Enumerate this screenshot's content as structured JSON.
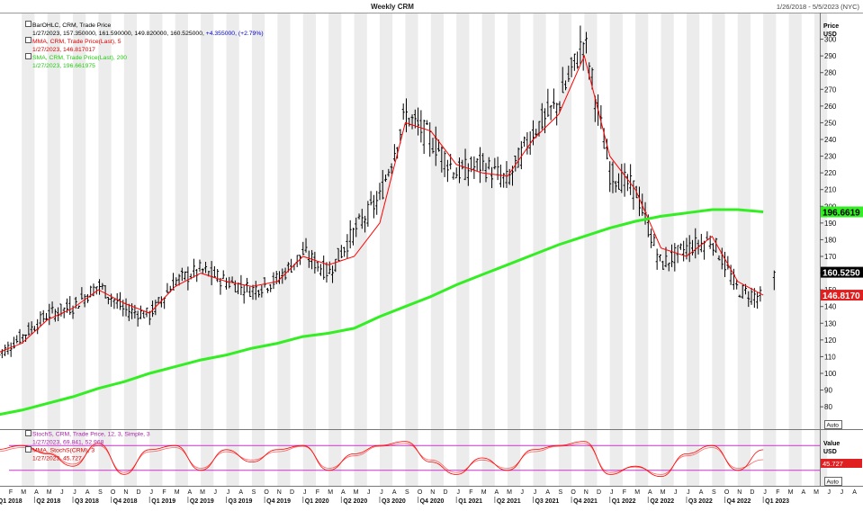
{
  "header": {
    "title": "Weekly CRM",
    "date_range": "1/26/2018 - 5/5/2023 (NYC)"
  },
  "legend_main": {
    "bar_name": "BarOHLC, CRM, Trade Price",
    "bar_values_date": "1/27/2023, 157.350000, 161.590000, 149.820000, 160.525000,",
    "bar_change": "+4.355000, (+2.79%)",
    "mma_name": "MMA, CRM, Trade Price(Last), 5",
    "mma_value": "1/27/2023, 146.817017",
    "sma_name": "SMA, CRM, Trade Price(Last), 200",
    "sma_value": "1/27/2023, 196.661975"
  },
  "legend_lower": {
    "stoch_name": "StochS, CRM, Trade Price, 12, 3, Simple, 3",
    "stoch_date": "1/27/2023, 69.841,",
    "stoch_val2": "52.968",
    "mma_name": "MMA, StochS(CRM), 3",
    "mma_value": "1/27/2023, 45.727"
  },
  "price_axis": {
    "title": "Price",
    "unit": "USD",
    "ticks": [
      "300",
      "290",
      "280",
      "270",
      "260",
      "250",
      "240",
      "230",
      "220",
      "210",
      "200",
      "190",
      "180",
      "170",
      "160",
      "150",
      "140",
      "130",
      "120",
      "110",
      "100",
      "90",
      "80"
    ],
    "badge_sma": "196.6619",
    "badge_last": "160.5250",
    "badge_mma": "146.8170",
    "auto_label": "Auto"
  },
  "value_axis": {
    "title": "Value",
    "unit": "USD",
    "badge": "45.727",
    "auto_label": "Auto"
  },
  "x_axis": {
    "months": [
      "F",
      "M",
      "A",
      "M",
      "J",
      "J",
      "A",
      "S",
      "O",
      "N",
      "D",
      "J",
      "F",
      "M",
      "A",
      "M",
      "J",
      "J",
      "A",
      "S",
      "O",
      "N",
      "D",
      "J",
      "F",
      "M",
      "A",
      "M",
      "J",
      "J",
      "A",
      "S",
      "O",
      "N",
      "D",
      "J",
      "F",
      "M",
      "A",
      "M",
      "J",
      "J",
      "A",
      "S",
      "O",
      "N",
      "D",
      "J",
      "F",
      "M",
      "A",
      "M",
      "J",
      "J",
      "A",
      "S",
      "O",
      "N",
      "D",
      "J",
      "F",
      "M",
      "A",
      "M",
      "J",
      "J",
      "A",
      "S",
      "O",
      "N",
      "D",
      "J",
      "F",
      "M",
      "A",
      "M"
    ],
    "quarters": [
      "Q1 2018",
      "Q2 2018",
      "Q3 2018",
      "Q4 2018",
      "Q1 2019",
      "Q2 2019",
      "Q3 2019",
      "Q4 2019",
      "Q1 2020",
      "Q2 2020",
      "Q3 2020",
      "Q4 2020",
      "Q1 2021",
      "Q2 2021",
      "Q3 2021",
      "Q4 2021",
      "Q1 2022",
      "Q2 2022",
      "Q3 2022",
      "Q4 2022",
      "Q1 2023"
    ]
  },
  "colors": {
    "bars": "#000000",
    "mma": "#ff0000",
    "sma": "#33ee22",
    "stoch": "#ff0000",
    "stoch_levels": "#cc33cc",
    "band": "#ececec",
    "bar_change": "#0000cc"
  },
  "chart_data": [
    {
      "type": "line",
      "title": "Weekly CRM",
      "ylabel": "Price",
      "y_unit": "USD",
      "ylim": [
        72,
        310
      ],
      "x_unit": "month (start of period)",
      "grid": false,
      "legend_position": "top-left",
      "x": [
        "2018-01",
        "2018-03",
        "2018-05",
        "2018-07",
        "2018-09",
        "2018-11",
        "2019-01",
        "2019-03",
        "2019-05",
        "2019-07",
        "2019-09",
        "2019-11",
        "2020-01",
        "2020-03",
        "2020-05",
        "2020-07",
        "2020-09",
        "2020-11",
        "2021-01",
        "2021-03",
        "2021-05",
        "2021-07",
        "2021-09",
        "2021-11",
        "2022-01",
        "2022-03",
        "2022-05",
        "2022-07",
        "2022-09",
        "2022-11",
        "2023-01"
      ],
      "series": [
        {
          "name": "BarOHLC, CRM, Trade Price",
          "style": "ohlc",
          "values": [
            110,
            122,
            135,
            140,
            153,
            138,
            135,
            155,
            162,
            155,
            150,
            156,
            172,
            160,
            185,
            205,
            255,
            240,
            220,
            225,
            215,
            245,
            262,
            300,
            220,
            210,
            165,
            175,
            180,
            150,
            145
          ],
          "last_bar": {
            "date": "2023-01-27",
            "open": 157.35,
            "high": 161.59,
            "low": 149.82,
            "close": 160.525
          }
        },
        {
          "name": "MMA, CRM, Trade Price(Last), 5",
          "values": [
            112,
            118,
            132,
            139,
            150,
            142,
            136,
            152,
            160,
            155,
            152,
            155,
            170,
            165,
            170,
            190,
            250,
            245,
            225,
            220,
            218,
            240,
            255,
            290,
            230,
            210,
            175,
            170,
            182,
            155,
            146.817017
          ]
        },
        {
          "name": "SMA, CRM, Trade Price(Last), 200",
          "values": [
            75,
            78,
            82,
            86,
            91,
            95,
            100,
            104,
            108,
            111,
            115,
            118,
            122,
            124,
            127,
            134,
            140,
            146,
            153,
            159,
            165,
            171,
            177,
            182,
            187,
            191,
            194,
            196,
            198,
            198,
            196.661975
          ]
        }
      ]
    },
    {
      "type": "line",
      "title": "",
      "ylabel": "Value",
      "y_unit": "USD",
      "ylim": [
        0,
        100
      ],
      "reference_lines": [
        80,
        20
      ],
      "series": [
        {
          "name": "StochS, CRM, Trade Price, 12, 3, Simple, 3",
          "values": [
            70,
            80,
            60,
            30,
            85,
            10,
            70,
            80,
            20,
            70,
            40,
            70,
            80,
            20,
            60,
            80,
            90,
            40,
            10,
            50,
            20,
            70,
            80,
            90,
            10,
            30,
            5,
            60,
            80,
            20,
            69.841
          ]
        },
        {
          "name": "MMA, StochS(CRM), 3",
          "values": [
            65,
            75,
            62,
            35,
            80,
            15,
            65,
            75,
            25,
            65,
            45,
            65,
            78,
            25,
            55,
            78,
            85,
            45,
            15,
            45,
            25,
            65,
            78,
            85,
            15,
            28,
            10,
            55,
            75,
            25,
            45.727
          ]
        }
      ]
    }
  ]
}
